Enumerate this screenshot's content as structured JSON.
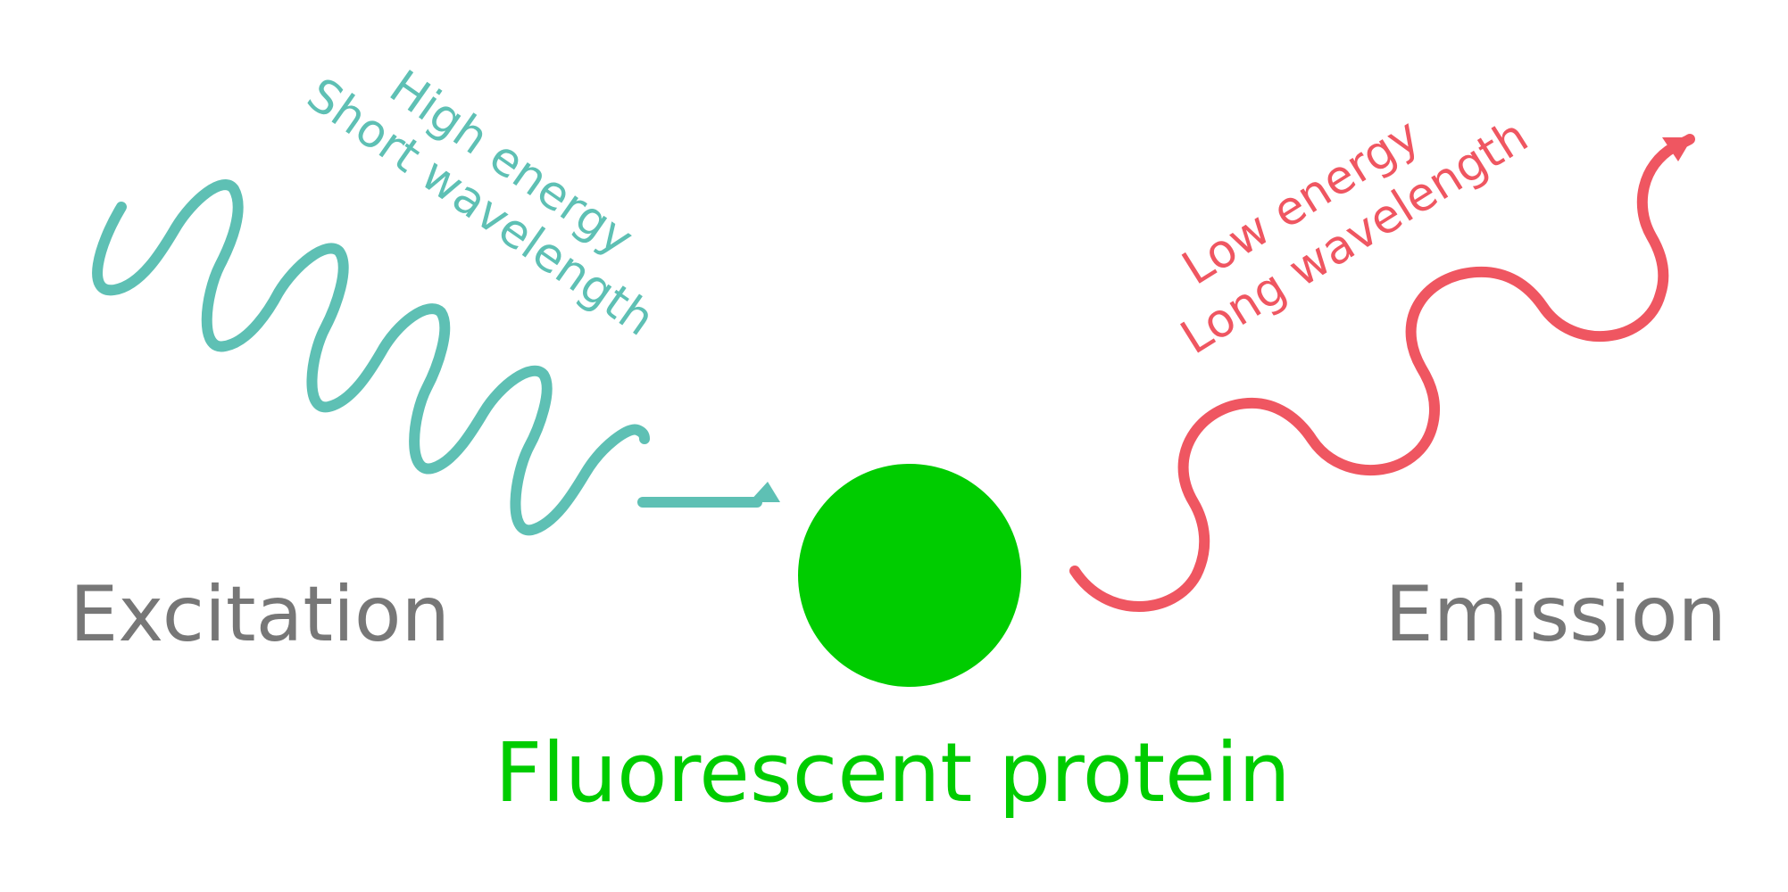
{
  "excitation": {
    "label": "Excitation",
    "annotation_line1": "High energy",
    "annotation_line2": "Short wavelength",
    "color": "#5ec0b4"
  },
  "emission": {
    "label": "Emission",
    "annotation_line1": "Low energy",
    "annotation_line2": "Long wavelength",
    "color": "#ef5661"
  },
  "protein": {
    "label": "Fluorescent protein",
    "color": "#00cc00"
  },
  "side_label_color": "#777777"
}
